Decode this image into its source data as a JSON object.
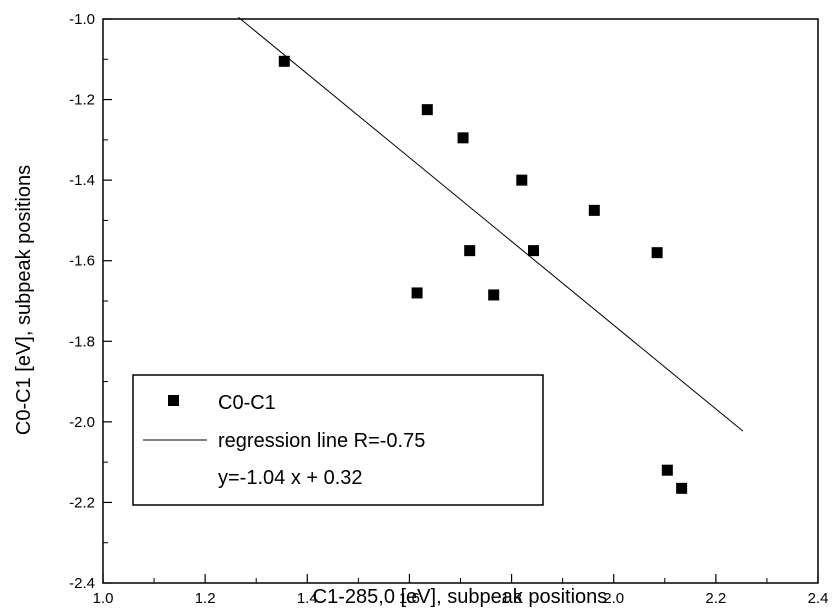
{
  "chart_data": {
    "type": "scatter",
    "xlabel": "C1-285,0 [eV], subpeak positions",
    "ylabel": "C0-C1 [eV], subpeak positions",
    "xlim": [
      1.0,
      2.4
    ],
    "ylim": [
      -2.4,
      -1.0
    ],
    "x_ticks": [
      "1.0",
      "1.2",
      "1.4",
      "1.6",
      "1.8",
      "2.0",
      "2.2",
      "2.4"
    ],
    "y_ticks": [
      "-1.0",
      "-1.2",
      "-1.4",
      "-1.6",
      "-1.8",
      "-2.0",
      "-2.2",
      "-2.4"
    ],
    "grid": false,
    "legend_position": "bottom-left",
    "series": [
      {
        "name": "C0-C1",
        "marker": "square",
        "color": "#000000",
        "points": [
          {
            "x": 1.355,
            "y": -1.105
          },
          {
            "x": 1.635,
            "y": -1.225
          },
          {
            "x": 1.705,
            "y": -1.295
          },
          {
            "x": 1.82,
            "y": -1.4
          },
          {
            "x": 1.962,
            "y": -1.475
          },
          {
            "x": 2.085,
            "y": -1.58
          },
          {
            "x": 1.615,
            "y": -1.68
          },
          {
            "x": 1.718,
            "y": -1.575
          },
          {
            "x": 1.765,
            "y": -1.685
          },
          {
            "x": 1.843,
            "y": -1.575
          },
          {
            "x": 2.105,
            "y": -2.12
          },
          {
            "x": 2.133,
            "y": -2.165
          }
        ]
      }
    ],
    "regression": {
      "name": "regression line R=-0.75",
      "equation": "y=-1.04 x + 0.32",
      "x_range": [
        1.265,
        2.253
      ],
      "slope": -1.04,
      "intercept": 0.32
    }
  }
}
